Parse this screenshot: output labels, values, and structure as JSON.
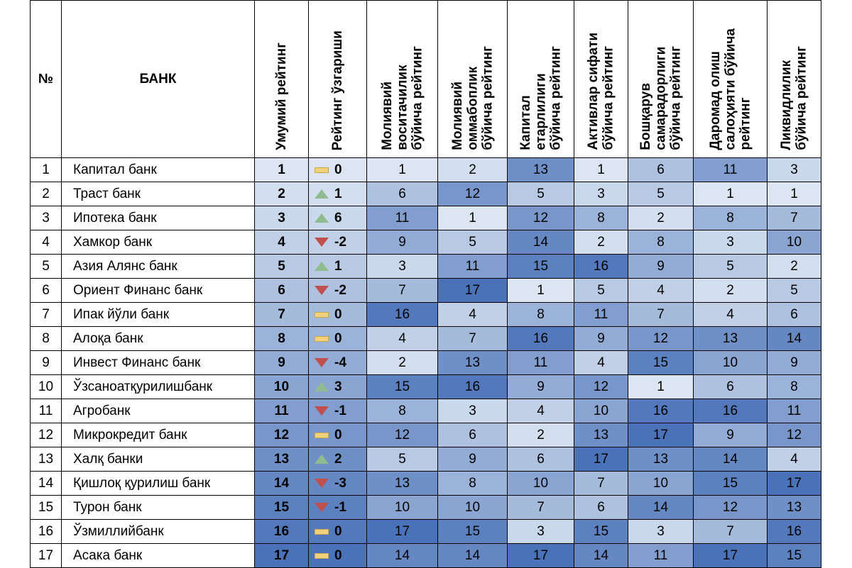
{
  "headers": {
    "num": "№",
    "bank": "БАНК",
    "cols": [
      "Умумий рейтинг",
      "Рейтинг ўзгариши",
      "Молиявий\nвоситачилик\nбўйича рейтинг",
      "Молиявий\nоммабоплик\nбўйича рейтинг",
      "Капитал\nетарлилиги\nбўйича рейтинг",
      "Активлар сифати\nбўйича рейтинг",
      "Бошқарув\nсамарадорлиги\nбўйича рейтинг",
      "Даромад олиш\nсалоҳияти бўйича\nрейтинг",
      "Ликвидлилик\nбўйича рейтинг"
    ]
  },
  "rows": [
    {
      "num": "1",
      "bank": "Капитал банк",
      "overall": "1",
      "dir": "flat",
      "change": "0",
      "vals": [
        "1",
        "2",
        "13",
        "1",
        "6",
        "11",
        "3"
      ]
    },
    {
      "num": "2",
      "bank": "Траст банк",
      "overall": "2",
      "dir": "up",
      "change": "1",
      "vals": [
        "6",
        "12",
        "5",
        "3",
        "5",
        "1",
        "1"
      ]
    },
    {
      "num": "3",
      "bank": "Ипотека банк",
      "overall": "3",
      "dir": "up",
      "change": "6",
      "vals": [
        "11",
        "1",
        "12",
        "8",
        "2",
        "8",
        "7"
      ]
    },
    {
      "num": "4",
      "bank": "Хамкор банк",
      "overall": "4",
      "dir": "down",
      "change": "-2",
      "vals": [
        "9",
        "5",
        "14",
        "2",
        "8",
        "3",
        "10"
      ]
    },
    {
      "num": "5",
      "bank": "Азия Алянс банк",
      "overall": "5",
      "dir": "up",
      "change": "1",
      "vals": [
        "3",
        "11",
        "15",
        "16",
        "9",
        "5",
        "2"
      ]
    },
    {
      "num": "6",
      "bank": "Ориент Финанс банк",
      "overall": "6",
      "dir": "down",
      "change": "-2",
      "vals": [
        "7",
        "17",
        "1",
        "5",
        "4",
        "2",
        "5"
      ]
    },
    {
      "num": "7",
      "bank": "Ипак йўли банк",
      "overall": "7",
      "dir": "flat",
      "change": "0",
      "vals": [
        "16",
        "4",
        "8",
        "11",
        "7",
        "4",
        "6"
      ]
    },
    {
      "num": "8",
      "bank": "Алоқа банк",
      "overall": "8",
      "dir": "flat",
      "change": "0",
      "vals": [
        "4",
        "7",
        "16",
        "9",
        "12",
        "13",
        "14"
      ]
    },
    {
      "num": "9",
      "bank": "Инвест Финанс банк",
      "overall": "9",
      "dir": "down",
      "change": "-4",
      "vals": [
        "2",
        "13",
        "11",
        "4",
        "15",
        "10",
        "9"
      ]
    },
    {
      "num": "10",
      "bank": "Ўзсаноатқурилишбанк",
      "overall": "10",
      "dir": "up",
      "change": "3",
      "vals": [
        "15",
        "16",
        "9",
        "12",
        "1",
        "6",
        "8"
      ]
    },
    {
      "num": "11",
      "bank": "Агробанк",
      "overall": "11",
      "dir": "down",
      "change": "-1",
      "vals": [
        "8",
        "3",
        "4",
        "10",
        "16",
        "16",
        "11"
      ]
    },
    {
      "num": "12",
      "bank": "Микрокредит банк",
      "overall": "12",
      "dir": "flat",
      "change": "0",
      "vals": [
        "12",
        "6",
        "2",
        "13",
        "17",
        "9",
        "12"
      ]
    },
    {
      "num": "13",
      "bank": "Халқ банки",
      "overall": "13",
      "dir": "up",
      "change": "2",
      "vals": [
        "5",
        "9",
        "6",
        "17",
        "13",
        "14",
        "4"
      ]
    },
    {
      "num": "14",
      "bank": "Қишлоқ қурилиш банк",
      "overall": "14",
      "dir": "down",
      "change": "-3",
      "vals": [
        "13",
        "8",
        "10",
        "7",
        "10",
        "15",
        "17"
      ]
    },
    {
      "num": "15",
      "bank": "Турон банк",
      "overall": "15",
      "dir": "down",
      "change": "-1",
      "vals": [
        "10",
        "10",
        "7",
        "6",
        "14",
        "12",
        "13"
      ]
    },
    {
      "num": "16",
      "bank": "Ўзмиллийбанк",
      "overall": "16",
      "dir": "flat",
      "change": "0",
      "vals": [
        "17",
        "15",
        "3",
        "15",
        "3",
        "7",
        "16"
      ]
    },
    {
      "num": "17",
      "bank": "Асака банк",
      "overall": "17",
      "dir": "flat",
      "change": "0",
      "vals": [
        "14",
        "14",
        "17",
        "14",
        "11",
        "17",
        "15"
      ]
    }
  ],
  "colors": {
    "scale_low": "#dce6f2",
    "scale_high": "#4a72b8",
    "up": "#8fbc8f",
    "down": "#c0504d",
    "flat": "#f1d27b",
    "border": "#000000"
  }
}
